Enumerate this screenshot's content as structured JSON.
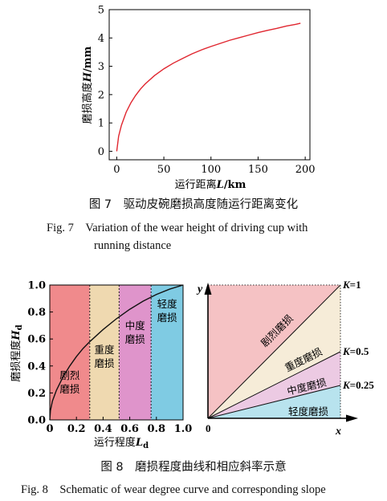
{
  "fig7": {
    "caption_zh": "图 7　驱动皮碗磨损高度随运行距离变化",
    "caption_en_1": "Fig. 7　Variation of the wear height of driving cup with",
    "caption_en_2": "running distance",
    "ylabel_prefix": "磨损高度",
    "ylabel_var": "H",
    "ylabel_unit": "/mm",
    "xlabel_prefix": "运行距离",
    "xlabel_var": "L",
    "xlabel_unit": "/km",
    "line_color": "#e0262f"
  },
  "fig8": {
    "caption_zh": "图 8　磨损程度曲线和相应斜率示意",
    "caption_en": "Fig. 8　Schematic of wear degree curve and corresponding slope",
    "left": {
      "ylabel_prefix": "磨损程度",
      "ylabel_var": "H",
      "ylabel_sub": "d",
      "xlabel_prefix": "运行程度",
      "xlabel_var": "L",
      "xlabel_sub": "d",
      "zones": [
        {
          "line1": "剧烈",
          "line2": "磨损",
          "from": 0.0,
          "to": 0.3,
          "color": "#f08a8c"
        },
        {
          "line1": "重度",
          "line2": "磨损",
          "from": 0.3,
          "to": 0.52,
          "color": "#efd9b0"
        },
        {
          "line1": "中度",
          "line2": "磨损",
          "from": 0.52,
          "to": 0.76,
          "color": "#df94cb"
        },
        {
          "line1": "轻度",
          "line2": "磨损",
          "from": 0.76,
          "to": 1.0,
          "color": "#7fcbe3"
        }
      ]
    },
    "right": {
      "axis_y": "y",
      "axis_x": "x",
      "origin": "0",
      "regions": [
        {
          "label": "剧烈磨损",
          "color": "#f5c2c4"
        },
        {
          "label": "重度磨损",
          "color": "#f6ecd8"
        },
        {
          "label": "中度磨损",
          "color": "#eccae3"
        },
        {
          "label": "轻度磨损",
          "color": "#b8e3ee"
        }
      ],
      "slope_labels": [
        {
          "k": "K",
          "value": "=1"
        },
        {
          "k": "K",
          "value": "=0.5"
        },
        {
          "k": "K",
          "value": "=0.25"
        }
      ]
    }
  },
  "chart_data": [
    {
      "type": "line",
      "xlabel": "运行距离L/km",
      "ylabel": "磨损高度H/mm",
      "xlim": [
        -8,
        205
      ],
      "ylim": [
        -0.3,
        5
      ],
      "xticks": [
        0,
        50,
        100,
        150,
        200
      ],
      "yticks": [
        0,
        1,
        2,
        3,
        4,
        5
      ],
      "series": [
        {
          "x": [
            0,
            2,
            5,
            10,
            15,
            20,
            25,
            30,
            40,
            50,
            60,
            70,
            80,
            90,
            100,
            110,
            120,
            130,
            140,
            150,
            160,
            170,
            180,
            190,
            195
          ],
          "values": [
            0.0,
            0.53,
            0.92,
            1.38,
            1.71,
            1.97,
            2.19,
            2.37,
            2.67,
            2.91,
            3.11,
            3.28,
            3.44,
            3.58,
            3.7,
            3.81,
            3.92,
            4.01,
            4.1,
            4.19,
            4.27,
            4.34,
            4.42,
            4.48,
            4.52
          ]
        }
      ],
      "grid": false
    },
    {
      "type": "line",
      "xlabel": "运行程度Ld",
      "ylabel": "磨损程度Hd",
      "xlim": [
        0,
        1.0
      ],
      "ylim": [
        0,
        1.0
      ],
      "xticks": [
        0,
        0.2,
        0.4,
        0.6,
        0.8,
        1.0
      ],
      "yticks": [
        0.0,
        0.2,
        0.4,
        0.6,
        0.8,
        1.0
      ],
      "series": [
        {
          "x": [
            0,
            0.005,
            0.02,
            0.05,
            0.1,
            0.15,
            0.2,
            0.25,
            0.3,
            0.4,
            0.5,
            0.6,
            0.7,
            0.8,
            0.9,
            1.0
          ],
          "values": [
            0,
            0.07,
            0.14,
            0.22,
            0.32,
            0.4,
            0.47,
            0.53,
            0.58,
            0.67,
            0.75,
            0.82,
            0.88,
            0.93,
            0.97,
            1.0
          ]
        }
      ],
      "grid": false
    }
  ]
}
